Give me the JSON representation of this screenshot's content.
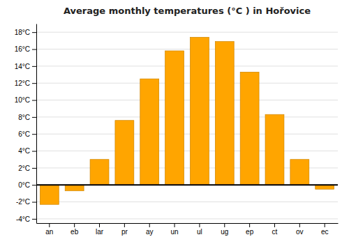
{
  "chart_data": {
    "type": "bar",
    "title": "Average monthly temperatures (°C ) in Hořovice",
    "categories": [
      "an",
      "eb",
      "lar",
      "pr",
      "ay",
      "un",
      "ul",
      "ug",
      "ep",
      "ct",
      "ov",
      "ec"
    ],
    "values": [
      -2.3,
      -0.7,
      3.0,
      7.6,
      12.5,
      15.8,
      17.4,
      16.9,
      13.3,
      8.3,
      3.0,
      -0.5
    ],
    "color": "#FFA500",
    "ylim": [
      -4.5,
      19
    ],
    "yticks": [
      {
        "value": -4,
        "label": "-4°C"
      },
      {
        "value": -2,
        "label": "-2°C"
      },
      {
        "value": 0,
        "label": "0°C"
      },
      {
        "value": 2,
        "label": "2°C"
      },
      {
        "value": 4,
        "label": "4°C"
      },
      {
        "value": 6,
        "label": "6°C"
      },
      {
        "value": 8,
        "label": "8°C"
      },
      {
        "value": 10,
        "label": "10°C"
      },
      {
        "value": 12,
        "label": "12°C"
      },
      {
        "value": 14,
        "label": "14°C"
      },
      {
        "value": 16,
        "label": "16°C"
      },
      {
        "value": 18,
        "label": "18°C"
      }
    ],
    "grid": true
  }
}
